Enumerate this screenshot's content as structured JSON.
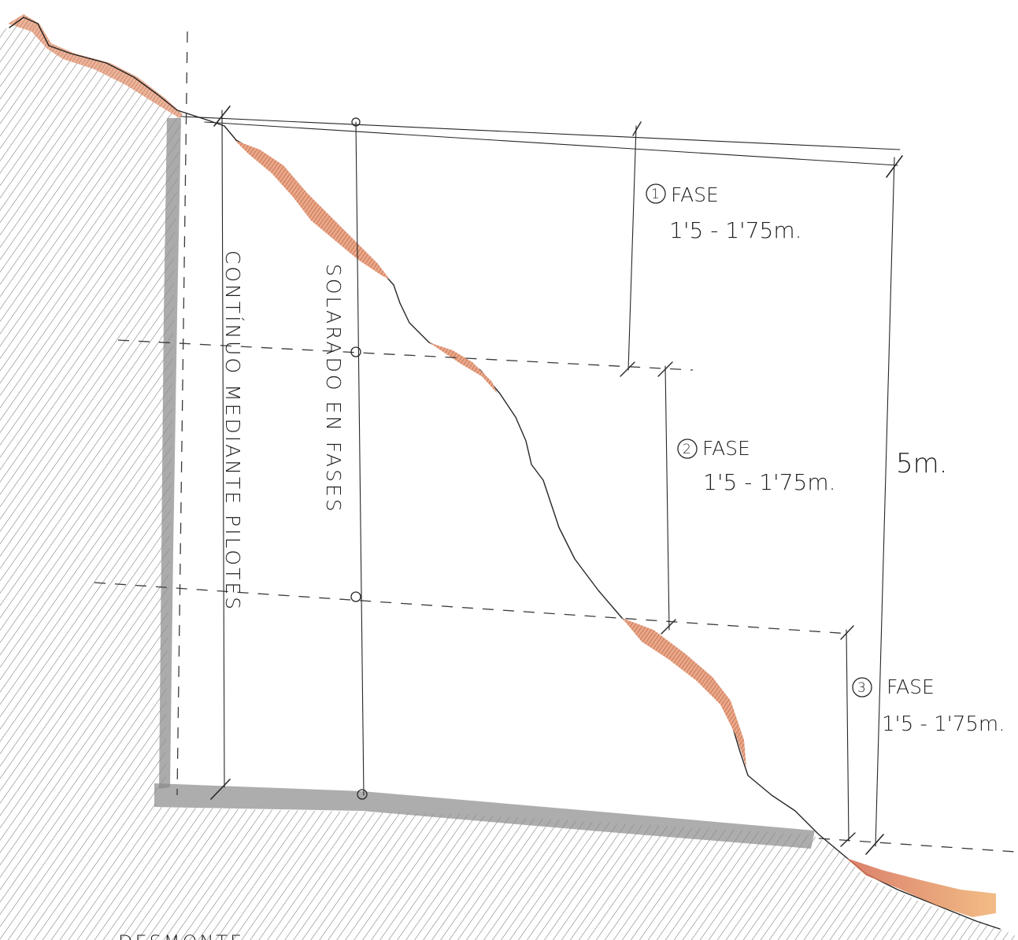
{
  "labels": {
    "vertical_left": "CONTÍNUO MEDIANTE PILOTES",
    "vertical_mid": "SOLARADO EN FASES",
    "phase1_title": "FASE",
    "phase1_num": "1",
    "phase1_range": "1'5 - 1'75m.",
    "phase2_title": "FASE",
    "phase2_num": "2",
    "phase2_range": "1'5 - 1'75m.",
    "phase3_title": "FASE",
    "phase3_num": "3",
    "phase3_range": "1'5 - 1'75m.",
    "total_height": "5m.",
    "bottom_note": "DESMONTE"
  },
  "colors": {
    "ink": "#262626",
    "soil_hatch": "#4a4a4a",
    "red_pencil": "#c8564a",
    "orange_pencil": "#e8a070",
    "wall_shadow": "#8c8c8c"
  }
}
